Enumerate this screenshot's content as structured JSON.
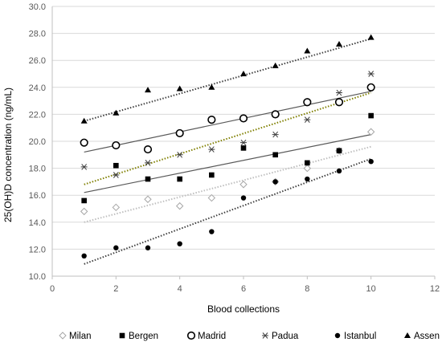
{
  "chart_data": {
    "type": "scatter",
    "title": "",
    "xlabel": "Blood collections",
    "ylabel": "25(OH)D concentration (ng/mL)",
    "xlim": [
      0,
      12
    ],
    "ylim": [
      10,
      30
    ],
    "xticks": [
      0,
      2,
      4,
      6,
      8,
      10,
      12
    ],
    "yticks": [
      10,
      12,
      14,
      16,
      18,
      20,
      22,
      24,
      26,
      28,
      30
    ],
    "x_tick_labels": [
      "0",
      "2",
      "4",
      "6",
      "8",
      "10",
      "12"
    ],
    "y_tick_labels": [
      "10.0",
      "12.0",
      "14.0",
      "16.0",
      "18.0",
      "20.0",
      "22.0",
      "24.0",
      "26.0",
      "28.0",
      "30.0"
    ],
    "grid": "horizontal",
    "legend_position": "bottom",
    "x": [
      1,
      2,
      3,
      4,
      5,
      6,
      7,
      8,
      9,
      10
    ],
    "series": [
      {
        "name": "Milan",
        "marker": "diamond-open",
        "color": "#a6a6a6",
        "values": [
          14.8,
          15.1,
          15.7,
          15.2,
          15.8,
          16.8,
          17.0,
          18.0,
          19.3,
          20.7
        ],
        "trendline": {
          "start": 14.0,
          "end": 19.6,
          "style": "dotted",
          "color": "#bfbfbf"
        }
      },
      {
        "name": "Bergen",
        "marker": "square-filled",
        "color": "#000000",
        "values": [
          15.6,
          18.2,
          17.2,
          17.2,
          17.5,
          19.5,
          19.0,
          18.4,
          19.3,
          21.9
        ],
        "trendline": {
          "start": 16.2,
          "end": 20.5,
          "style": "solid",
          "color": "#595959"
        }
      },
      {
        "name": "Madrid",
        "marker": "circle-open",
        "color": "#000000",
        "values": [
          19.9,
          19.7,
          19.4,
          20.6,
          21.6,
          21.7,
          22.0,
          22.9,
          22.9,
          24.0
        ],
        "trendline": {
          "start": 19.2,
          "end": 23.7,
          "style": "solid",
          "color": "#595959"
        }
      },
      {
        "name": "Padua",
        "marker": "asterisk",
        "color": "#404040",
        "values": [
          18.1,
          17.5,
          18.4,
          19.0,
          19.4,
          19.9,
          20.5,
          21.6,
          23.6,
          25.0
        ],
        "trendline": {
          "start": 16.8,
          "end": 23.6,
          "style": "dotted",
          "color": "#7f7f00"
        }
      },
      {
        "name": "Istanbul",
        "marker": "circle-filled",
        "color": "#000000",
        "values": [
          11.5,
          12.1,
          12.1,
          12.4,
          13.3,
          15.8,
          17.0,
          17.2,
          17.8,
          18.5
        ],
        "trendline": {
          "start": 10.9,
          "end": 18.7,
          "style": "dotted",
          "color": "#404040"
        }
      },
      {
        "name": "Assen",
        "marker": "triangle-filled",
        "color": "#000000",
        "values": [
          21.5,
          22.1,
          23.8,
          23.9,
          24.0,
          25.0,
          25.6,
          26.7,
          27.2,
          27.7
        ],
        "trendline": {
          "start": 21.5,
          "end": 27.6,
          "style": "dotted",
          "color": "#404040"
        }
      }
    ]
  }
}
